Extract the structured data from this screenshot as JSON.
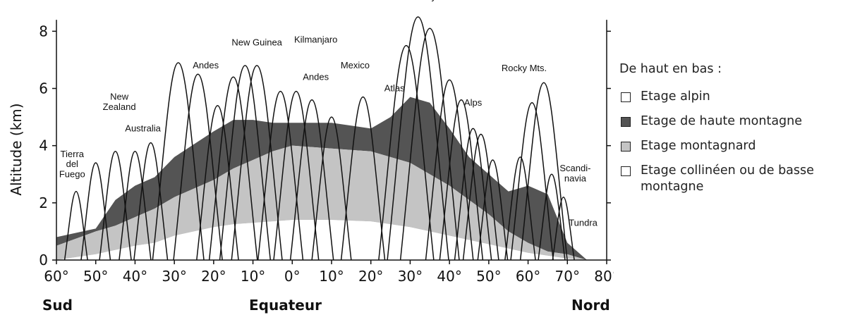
{
  "chart_data": {
    "type": "area",
    "xlabel": "",
    "ylabel": "Altitude (km)",
    "x_ticks": [
      "60°",
      "50°",
      "40°",
      "30°",
      "20°",
      "10°",
      "0°",
      "10°",
      "20°",
      "30°",
      "40°",
      "50°",
      "60°",
      "70°",
      "80°"
    ],
    "y_ticks": [
      "0",
      "2",
      "4",
      "6",
      "8"
    ],
    "ylim": [
      0,
      8.6
    ],
    "xlim": [
      -60,
      80
    ],
    "hemisphere_labels": {
      "south": "Sud",
      "equator": "Equateur",
      "north": "Nord"
    },
    "boundaries": {
      "x": [
        -60,
        -50,
        -45,
        -40,
        -35,
        -30,
        -20,
        -15,
        -10,
        -5,
        0,
        10,
        20,
        25,
        30,
        35,
        40,
        45,
        50,
        55,
        60,
        65,
        70,
        75
      ],
      "montagnard_bottom": [
        0,
        0.2,
        0.35,
        0.5,
        0.6,
        0.85,
        1.15,
        1.25,
        1.3,
        1.35,
        1.4,
        1.4,
        1.35,
        1.25,
        1.15,
        1.0,
        0.85,
        0.7,
        0.55,
        0.4,
        0.25,
        0.15,
        0.05,
        0
      ],
      "haute_montagne_bottom": [
        0.5,
        1.0,
        1.2,
        1.5,
        1.8,
        2.2,
        2.8,
        3.2,
        3.5,
        3.8,
        4.0,
        3.9,
        3.8,
        3.6,
        3.4,
        3.0,
        2.6,
        2.1,
        1.6,
        1.0,
        0.6,
        0.3,
        0.2,
        0
      ],
      "alpin_bottom": [
        0.8,
        1.1,
        2.1,
        2.6,
        2.9,
        3.6,
        4.5,
        4.9,
        4.9,
        4.8,
        4.8,
        4.8,
        4.6,
        5.0,
        5.7,
        5.5,
        4.6,
        3.6,
        3.0,
        2.4,
        2.6,
        2.3,
        0.6,
        0
      ]
    },
    "peaks": [
      {
        "x": -55,
        "h": 2.4
      },
      {
        "x": -50,
        "h": 3.4
      },
      {
        "x": -45,
        "h": 3.8
      },
      {
        "x": -40,
        "h": 3.8
      },
      {
        "x": -36,
        "h": 4.1
      },
      {
        "x": -29,
        "h": 6.9
      },
      {
        "x": -24,
        "h": 6.5
      },
      {
        "x": -19,
        "h": 5.4
      },
      {
        "x": -15,
        "h": 6.4
      },
      {
        "x": -12,
        "h": 6.8
      },
      {
        "x": -9,
        "h": 6.8
      },
      {
        "x": -3,
        "h": 5.9
      },
      {
        "x": 1,
        "h": 5.9
      },
      {
        "x": 5,
        "h": 5.6
      },
      {
        "x": 10,
        "h": 5.0
      },
      {
        "x": 18,
        "h": 5.7
      },
      {
        "x": 29,
        "h": 7.5
      },
      {
        "x": 32,
        "h": 8.5
      },
      {
        "x": 35,
        "h": 8.1
      },
      {
        "x": 40,
        "h": 6.3
      },
      {
        "x": 43,
        "h": 5.6
      },
      {
        "x": 46,
        "h": 4.6
      },
      {
        "x": 48,
        "h": 4.4
      },
      {
        "x": 51,
        "h": 3.5
      },
      {
        "x": 58,
        "h": 3.6
      },
      {
        "x": 61,
        "h": 5.5
      },
      {
        "x": 64,
        "h": 6.2
      },
      {
        "x": 66,
        "h": 3.0
      },
      {
        "x": 69,
        "h": 2.2
      }
    ],
    "mountain_labels": [
      {
        "text": "Tierra",
        "x": -56,
        "y": 3.6
      },
      {
        "text": "del",
        "x": -56,
        "y": 3.25
      },
      {
        "text": "Fuego",
        "x": -56,
        "y": 2.9
      },
      {
        "text": "New",
        "x": -44,
        "y": 5.6
      },
      {
        "text": "Zealand",
        "x": -44,
        "y": 5.25
      },
      {
        "text": "Australia",
        "x": -38,
        "y": 4.5
      },
      {
        "text": "Andes",
        "x": -22,
        "y": 6.7
      },
      {
        "text": "New Guinea",
        "x": -9,
        "y": 7.5
      },
      {
        "text": "Kilmanjaro",
        "x": 6,
        "y": 7.6
      },
      {
        "text": "Andes",
        "x": 6,
        "y": 6.3
      },
      {
        "text": "Mexico",
        "x": 16,
        "y": 6.7
      },
      {
        "text": "Atlas",
        "x": 26,
        "y": 5.9
      },
      {
        "text": "Himalaya",
        "x": 33,
        "y": 9.1
      },
      {
        "text": "Alps",
        "x": 46,
        "y": 5.4
      },
      {
        "text": "Rocky Mts.",
        "x": 59,
        "y": 6.6
      },
      {
        "text": "Scandi-",
        "x": 72,
        "y": 3.1
      },
      {
        "text": "navia",
        "x": 72,
        "y": 2.75
      },
      {
        "text": "Tundra",
        "x": 74,
        "y": 1.2
      }
    ]
  },
  "legend": {
    "title": "De haut en bas :",
    "items": [
      {
        "label": "Etage alpin",
        "color": "#ffffff"
      },
      {
        "label": "Etage de haute montagne",
        "color": "#545454"
      },
      {
        "label": "Etage montagnard",
        "color": "#c4c4c4"
      },
      {
        "label": "Etage collinéen ou de basse montagne",
        "color": "#ffffff"
      }
    ]
  }
}
